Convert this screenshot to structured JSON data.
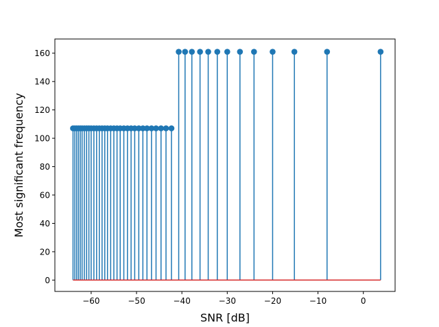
{
  "chart_data": {
    "type": "stem",
    "title": "",
    "xlabel": "SNR [dB]",
    "ylabel": "Most significant frequency",
    "xlim": [
      -68,
      7
    ],
    "ylim": [
      -8,
      170
    ],
    "xticks": [
      -60,
      -50,
      -40,
      -30,
      -20,
      -10,
      0
    ],
    "xtick_labels": [
      "−60",
      "−50",
      "−40",
      "−30",
      "−20",
      "−10",
      "0"
    ],
    "yticks": [
      0,
      20,
      40,
      60,
      80,
      100,
      120,
      140,
      160
    ],
    "ytick_labels": [
      "0",
      "20",
      "40",
      "60",
      "80",
      "100",
      "120",
      "140",
      "160"
    ],
    "grid": false,
    "legend": "none",
    "stem_color": "#1f77b4",
    "baseline_color": "#d62728",
    "baseline": 0,
    "x": [
      -64.0,
      -63.6,
      -63.2,
      -62.8,
      -62.4,
      -62.0,
      -61.5,
      -61.0,
      -60.5,
      -60.0,
      -59.4,
      -58.8,
      -58.2,
      -57.6,
      -57.0,
      -56.4,
      -55.7,
      -55.0,
      -54.3,
      -53.6,
      -52.8,
      -52.0,
      -51.2,
      -50.4,
      -49.5,
      -48.6,
      -47.7,
      -46.7,
      -45.7,
      -44.6,
      -43.5,
      -42.3,
      -40.7,
      -39.3,
      -37.8,
      -36.0,
      -34.2,
      -32.2,
      -30.0,
      -27.2,
      -24.1,
      -20.0,
      -15.2,
      -8.0,
      3.8
    ],
    "y": [
      107,
      107,
      107,
      107,
      107,
      107,
      107,
      107,
      107,
      107,
      107,
      107,
      107,
      107,
      107,
      107,
      107,
      107,
      107,
      107,
      107,
      107,
      107,
      107,
      107,
      107,
      107,
      107,
      107,
      107,
      107,
      107,
      161,
      161,
      161,
      161,
      161,
      161,
      161,
      161,
      161,
      161,
      161,
      161,
      161
    ]
  }
}
